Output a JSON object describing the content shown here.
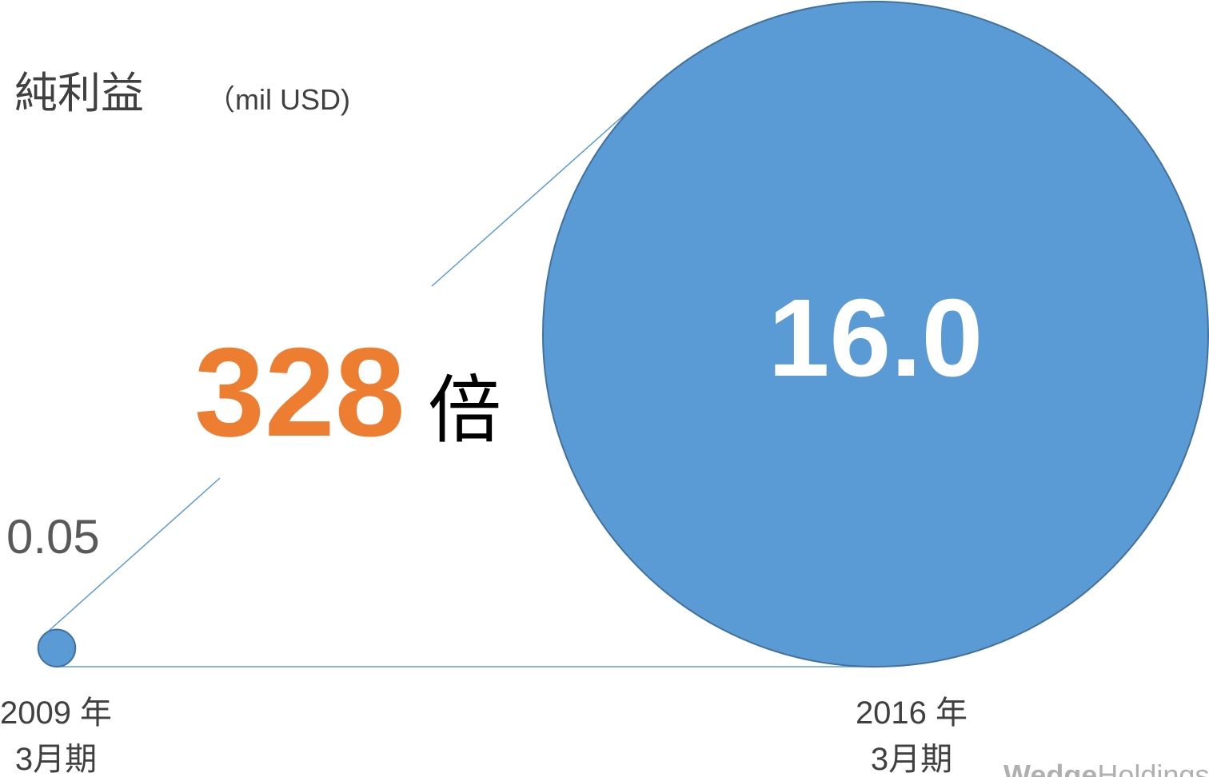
{
  "chart_data": {
    "type": "bubble",
    "title": "純利益",
    "unit": "（mil USD)",
    "annotation": {
      "number": "328",
      "suffix": "倍"
    },
    "categories": [
      [
        "2009 年",
        "3月期"
      ],
      [
        "2016 年",
        "3月期"
      ]
    ],
    "values": [
      0.05,
      16
    ],
    "value_labels": [
      "0.05",
      "16.0"
    ],
    "color": "#5b9bd5",
    "logo": {
      "bold": "Wedge",
      "light": "Holdings"
    }
  }
}
